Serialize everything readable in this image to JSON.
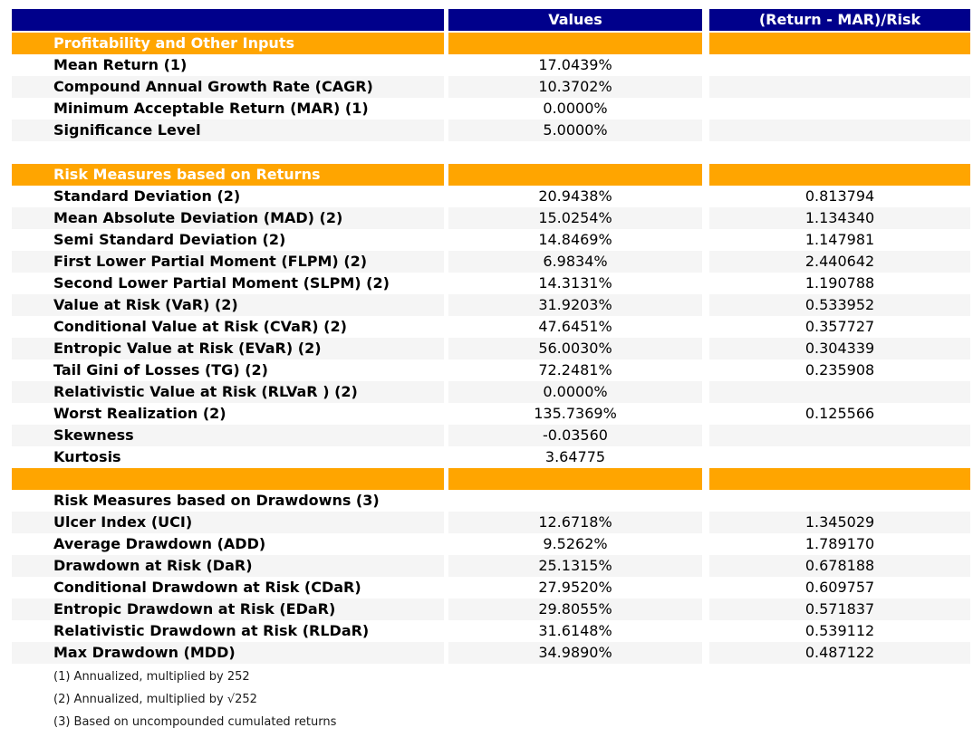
{
  "colors": {
    "header_bg": "#00008B",
    "section_bg": "#FFA500",
    "stripe_bg": "#F5F5F5",
    "header_text": "#FFFFFF",
    "body_text": "#000000",
    "footnote_text": "#1A1A1A"
  },
  "chart_data": {
    "type": "table",
    "columns": [
      "",
      "Values",
      "(Return - MAR)/Risk"
    ],
    "rows": [
      {
        "type": "section",
        "label": "Profitability and Other Inputs",
        "value": "",
        "risk": ""
      },
      {
        "type": "data",
        "label": "Mean Return (1)",
        "value": "17.0439%",
        "risk": ""
      },
      {
        "type": "data",
        "label": "Compound Annual Growth Rate (CAGR)",
        "value": "10.3702%",
        "risk": ""
      },
      {
        "type": "data",
        "label": "Minimum Acceptable Return (MAR) (1)",
        "value": "0.0000%",
        "risk": ""
      },
      {
        "type": "data",
        "label": "Significance Level",
        "value": "5.0000%",
        "risk": ""
      },
      {
        "type": "spacer",
        "label": "",
        "value": "",
        "risk": ""
      },
      {
        "type": "section",
        "label": "Risk Measures based on Returns",
        "value": "",
        "risk": ""
      },
      {
        "type": "data",
        "label": "Standard Deviation (2)",
        "value": "20.9438%",
        "risk": "0.813794"
      },
      {
        "type": "data",
        "label": "Mean Absolute Deviation (MAD) (2)",
        "value": "15.0254%",
        "risk": "1.134340"
      },
      {
        "type": "data",
        "label": "Semi Standard Deviation (2)",
        "value": "14.8469%",
        "risk": "1.147981"
      },
      {
        "type": "data",
        "label": "First Lower Partial Moment (FLPM) (2)",
        "value": "6.9834%",
        "risk": "2.440642"
      },
      {
        "type": "data",
        "label": "Second Lower Partial Moment (SLPM) (2)",
        "value": "14.3131%",
        "risk": "1.190788"
      },
      {
        "type": "data",
        "label": "Value at Risk (VaR) (2)",
        "value": "31.9203%",
        "risk": "0.533952"
      },
      {
        "type": "data",
        "label": "Conditional Value at Risk (CVaR) (2)",
        "value": "47.6451%",
        "risk": "0.357727"
      },
      {
        "type": "data",
        "label": "Entropic Value at Risk (EVaR) (2)",
        "value": "56.0030%",
        "risk": "0.304339"
      },
      {
        "type": "data",
        "label": "Tail Gini of Losses (TG) (2)",
        "value": "72.2481%",
        "risk": "0.235908"
      },
      {
        "type": "data",
        "label": "Relativistic Value at Risk (RLVaR ) (2)",
        "value": "0.0000%",
        "risk": ""
      },
      {
        "type": "data",
        "label": "Worst Realization (2)",
        "value": "135.7369%",
        "risk": "0.125566"
      },
      {
        "type": "data",
        "label": "Skewness",
        "value": "-0.03560",
        "risk": ""
      },
      {
        "type": "data",
        "label": "Kurtosis",
        "value": "3.64775",
        "risk": ""
      },
      {
        "type": "section",
        "label": "",
        "value": "",
        "risk": ""
      },
      {
        "type": "data",
        "label": "Risk Measures based on Drawdowns (3)",
        "value": "",
        "risk": ""
      },
      {
        "type": "data",
        "label": "Ulcer Index (UCI)",
        "value": "12.6718%",
        "risk": "1.345029"
      },
      {
        "type": "data",
        "label": "Average Drawdown (ADD)",
        "value": "9.5262%",
        "risk": "1.789170"
      },
      {
        "type": "data",
        "label": "Drawdown at Risk (DaR)",
        "value": "25.1315%",
        "risk": "0.678188"
      },
      {
        "type": "data",
        "label": "Conditional Drawdown at Risk (CDaR)",
        "value": "27.9520%",
        "risk": "0.609757"
      },
      {
        "type": "data",
        "label": "Entropic Drawdown at Risk (EDaR)",
        "value": "29.8055%",
        "risk": "0.571837"
      },
      {
        "type": "data",
        "label": "Relativistic Drawdown at Risk (RLDaR)",
        "value": "31.6148%",
        "risk": "0.539112"
      },
      {
        "type": "data",
        "label": "Max Drawdown (MDD)",
        "value": "34.9890%",
        "risk": "0.487122"
      }
    ],
    "footnotes": [
      "(1) Annualized, multiplied by 252",
      "(2) Annualized, multiplied by √252",
      "(3) Based on uncompounded cumulated returns"
    ]
  }
}
